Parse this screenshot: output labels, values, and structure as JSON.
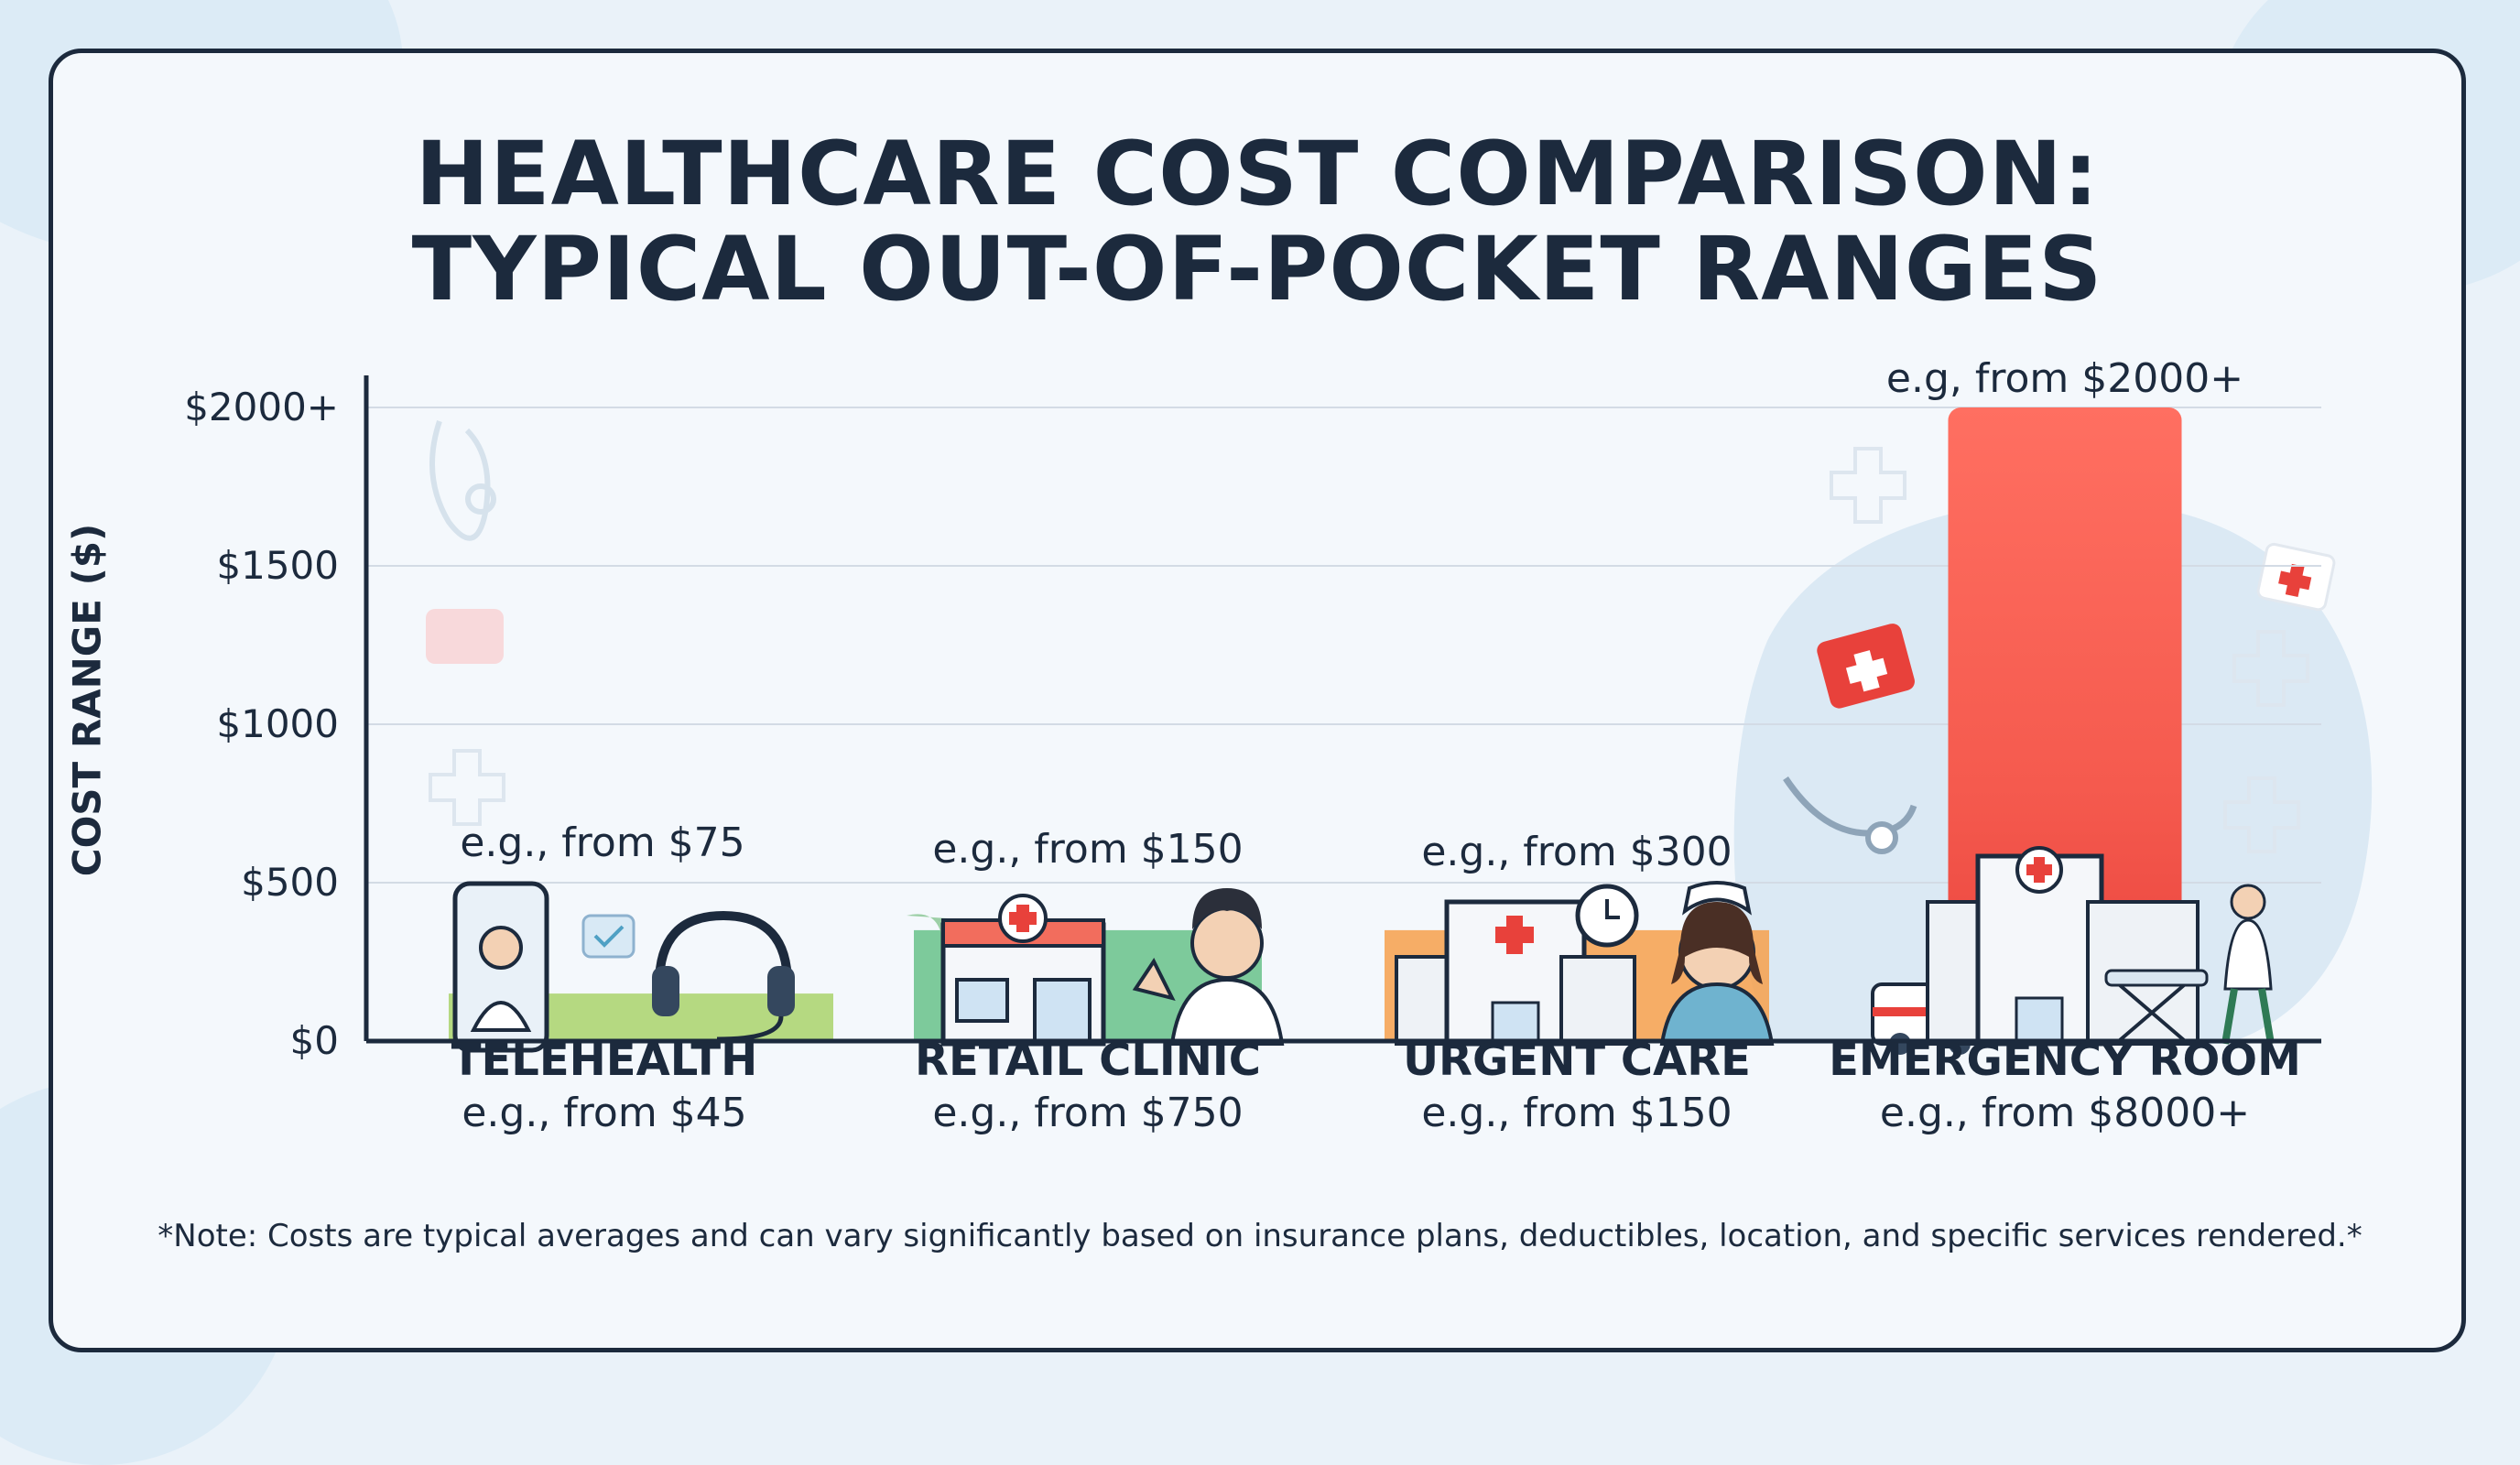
{
  "colors": {
    "text": "#1c2a3d",
    "telehealth": "#a9d36b",
    "retail_clinic": "#67c28a",
    "urgent_care": "#f6a04b",
    "emergency_room": "#f26d5d",
    "grid": "#d3dbe5"
  },
  "chart_data": {
    "type": "bar",
    "title": "HEALTHCARE COST COMPARISON: TYPICAL OUT-OF-POCKET RANGES",
    "title_lines": [
      "HEALTHCARE COST COMPARISON:",
      "TYPICAL OUT-OF-POCKET RANGES"
    ],
    "ylabel": "COST RANGE ($)",
    "ylim": [
      0,
      2000
    ],
    "yticks": [
      0,
      500,
      1000,
      1500,
      2000
    ],
    "ytick_labels": [
      "$0",
      "$500",
      "$1000",
      "$1500",
      "$2000+"
    ],
    "grid": true,
    "categories": [
      "TELEHEALTH",
      "RETAIL CLINIC",
      "URGENT CARE",
      "EMERGENCY ROOM"
    ],
    "values": [
      150,
      350,
      350,
      2000
    ],
    "bar_top_labels": [
      "e.g., from $75",
      "e.g., from $150",
      "e.g., from $300",
      "e.g, from $2000+"
    ],
    "category_sublabels": [
      "e.g., from $45",
      "e.g., from $750",
      "e.g., from $150",
      "e.g., from $8000+"
    ],
    "icons": [
      "smartphone-doctor-icon",
      "retail-clinic-storefront-icon",
      "urgent-care-building-icon",
      "hospital-ambulance-icon"
    ]
  },
  "note": "*Note: Costs are typical averages and can vary significantly based on insurance plans, deductibles, location, and specific services rendered.*"
}
